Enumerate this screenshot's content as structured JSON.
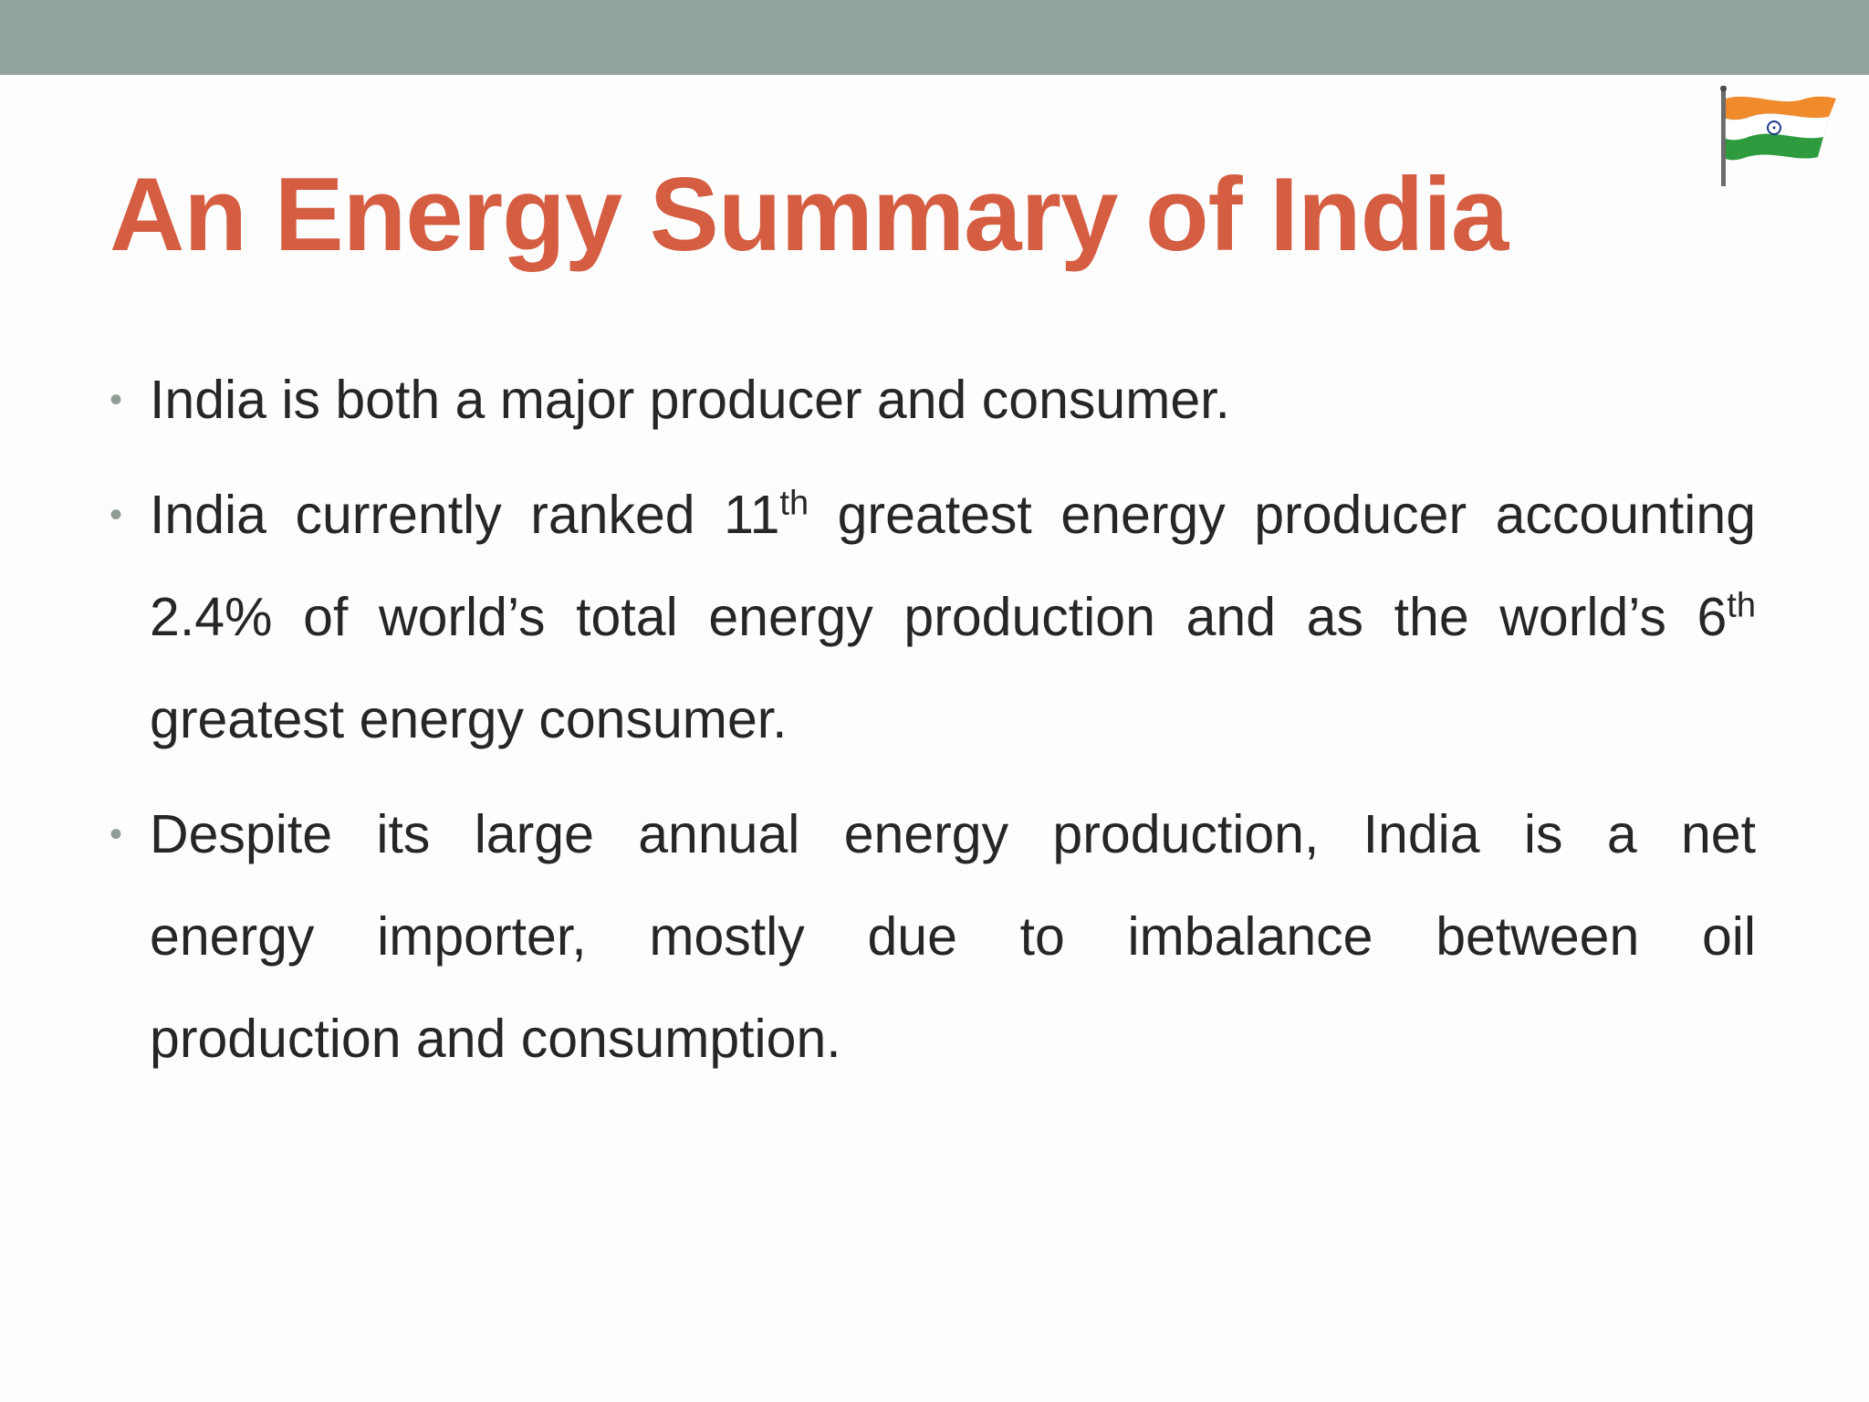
{
  "slide": {
    "title": "An Energy Summary of India",
    "flag_icon": "india-flag-icon",
    "colors": {
      "top_band": "#91a39a",
      "title": "#d45d42",
      "text": "#262626",
      "bullet": "#8f9d95"
    },
    "bullets": [
      {
        "lines": [
          "India is both a major producer and consumer."
        ]
      },
      {
        "line1_a": "India currently ranked 11",
        "line1_sup": "th",
        "line1_b": " greatest energy producer accounting",
        "line2_a": "2.4% of world’s total energy production and as the world’s 6",
        "line2_sup": "th",
        "line3": "greatest energy consumer."
      },
      {
        "lines": [
          "Despite its large annual energy production, India is a net",
          "energy importer, mostly due to imbalance between oil",
          "production and consumption."
        ]
      }
    ]
  }
}
